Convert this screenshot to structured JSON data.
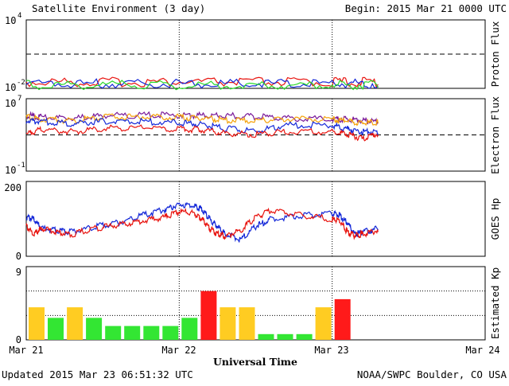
{
  "header": {
    "title": "Satellite Environment (3 day)",
    "begin": "Begin:  2015 Mar 21 0000 UTC"
  },
  "footer": {
    "updated": "Updated 2015 Mar 23 06:51:32 UTC",
    "credit": "NOAA/SWPC Boulder, CO USA"
  },
  "x_axis": {
    "title": "Universal Time",
    "ticks": [
      "Mar 21",
      "Mar 22",
      "Mar 23",
      "Mar 24"
    ]
  },
  "colors": {
    "red": "#e8140f",
    "blue": "#1428d8",
    "green": "#2ad92a",
    "orange": "#f5a20a",
    "purple": "#7a1a9a",
    "kp_quiet": "#33e633",
    "kp_active": "#ffcc22",
    "kp_storm": "#ff1a1a"
  },
  "chart_data": [
    {
      "type": "line",
      "panel": "proton",
      "ylabel": "Proton Flux",
      "yscale": "log",
      "ylim": [
        0.01,
        10000
      ],
      "ytick_labels": [
        [
          "10",
          "4"
        ],
        [
          "10",
          "-2"
        ]
      ],
      "xlim_days": [
        0,
        3
      ],
      "threshold": 10,
      "series": [
        {
          "color": "red",
          "x": [
            0,
            0.5,
            1,
            1.5,
            2,
            2.3
          ],
          "y": [
            0.022,
            0.022,
            0.022,
            0.022,
            0.022,
            0.022
          ]
        },
        {
          "color": "blue",
          "x": [
            0,
            0.5,
            1,
            1.5,
            2,
            2.3
          ],
          "y": [
            0.016,
            0.016,
            0.016,
            0.016,
            0.016,
            0.016
          ]
        },
        {
          "color": "green",
          "x": [
            0,
            0.5,
            1,
            1.5,
            2,
            2.3
          ],
          "y": [
            0.012,
            0.012,
            0.012,
            0.012,
            0.012,
            0.012
          ]
        }
      ]
    },
    {
      "type": "line",
      "panel": "electron",
      "ylabel": "Electron Flux",
      "yscale": "log",
      "ylim": [
        0.1,
        10000000
      ],
      "ytick_labels": [
        [
          "10",
          "7"
        ],
        [
          "10",
          "-1"
        ]
      ],
      "xlim_days": [
        0,
        3
      ],
      "threshold": 1000,
      "series": [
        {
          "color": "purple",
          "x": [
            0,
            0.1,
            0.3,
            0.5,
            0.75,
            1.0,
            1.15,
            1.3,
            1.5,
            1.7,
            2.0,
            2.1,
            2.2,
            2.3
          ],
          "y": [
            100000,
            60000,
            40000,
            90000,
            100000,
            100000,
            95000,
            90000,
            70000,
            45000,
            35000,
            38000,
            25000,
            20000
          ]
        },
        {
          "color": "orange",
          "x": [
            0,
            0.1,
            0.3,
            0.5,
            0.75,
            1.0,
            1.15,
            1.3,
            1.5,
            1.7,
            2.0,
            2.1,
            2.2,
            2.3
          ],
          "y": [
            60000,
            40000,
            25000,
            60000,
            70000,
            60000,
            45000,
            30000,
            25000,
            40000,
            35000,
            22000,
            15000,
            18000
          ]
        },
        {
          "color": "blue",
          "x": [
            0,
            0.1,
            0.3,
            0.5,
            0.75,
            1.0,
            1.15,
            1.3,
            1.5,
            1.7,
            2.0,
            2.1,
            2.2,
            2.3
          ],
          "y": [
            25000,
            20000,
            12000,
            20000,
            20000,
            15000,
            9000,
            3500,
            1500,
            8000,
            8000,
            3000,
            1500,
            1500
          ]
        },
        {
          "color": "red",
          "x": [
            0,
            0.1,
            0.3,
            0.5,
            0.75,
            1.0,
            1.15,
            1.3,
            1.5,
            1.7,
            2.0,
            2.1,
            2.2,
            2.3
          ],
          "y": [
            800,
            3000,
            1500,
            3500,
            4000,
            3000,
            2500,
            1000,
            700,
            1500,
            1500,
            800,
            250,
            1000
          ]
        }
      ]
    },
    {
      "type": "line",
      "panel": "goes_hp",
      "ylabel": "GOES Hp",
      "ylim": [
        0,
        200
      ],
      "ytick_labels": [
        "200",
        "0"
      ],
      "xlim_days": [
        0,
        3
      ],
      "series": [
        {
          "color": "blue",
          "x": [
            0,
            0.05,
            0.1,
            0.2,
            0.3,
            0.45,
            0.6,
            0.75,
            0.9,
            1.0,
            1.1,
            1.15,
            1.2,
            1.25,
            1.3,
            1.4,
            1.5,
            1.6,
            1.8,
            2.0,
            2.05,
            2.1,
            2.15,
            2.2,
            2.3
          ],
          "y": [
            100,
            95,
            70,
            65,
            60,
            75,
            85,
            105,
            120,
            135,
            130,
            120,
            95,
            75,
            55,
            40,
            75,
            95,
            105,
            110,
            105,
            85,
            55,
            60,
            70
          ]
        },
        {
          "color": "red",
          "x": [
            0,
            0.05,
            0.1,
            0.2,
            0.3,
            0.45,
            0.6,
            0.75,
            0.9,
            1.0,
            1.1,
            1.15,
            1.2,
            1.25,
            1.3,
            1.4,
            1.5,
            1.6,
            1.8,
            2.0,
            2.05,
            2.1,
            2.15,
            2.2,
            2.3
          ],
          "y": [
            75,
            55,
            70,
            60,
            55,
            70,
            80,
            90,
            100,
            115,
            110,
            95,
            70,
            55,
            50,
            65,
            100,
            120,
            105,
            95,
            90,
            60,
            50,
            55,
            65
          ]
        }
      ]
    },
    {
      "type": "bar",
      "panel": "kp",
      "ylabel": "Estimated Kp",
      "ylim": [
        0,
        9
      ],
      "ytick_labels": [
        "9",
        "0"
      ],
      "categories_interval_hours": 3,
      "values": [
        4,
        2.7,
        4,
        2.7,
        1.7,
        1.7,
        1.7,
        1.7,
        2.7,
        6,
        4,
        4,
        0.7,
        0.7,
        0.7,
        4,
        5
      ],
      "bar_colors": [
        "kp_active",
        "kp_quiet",
        "kp_active",
        "kp_quiet",
        "kp_quiet",
        "kp_quiet",
        "kp_quiet",
        "kp_quiet",
        "kp_quiet",
        "kp_storm",
        "kp_active",
        "kp_active",
        "kp_quiet",
        "kp_quiet",
        "kp_quiet",
        "kp_active",
        "kp_storm"
      ]
    }
  ]
}
